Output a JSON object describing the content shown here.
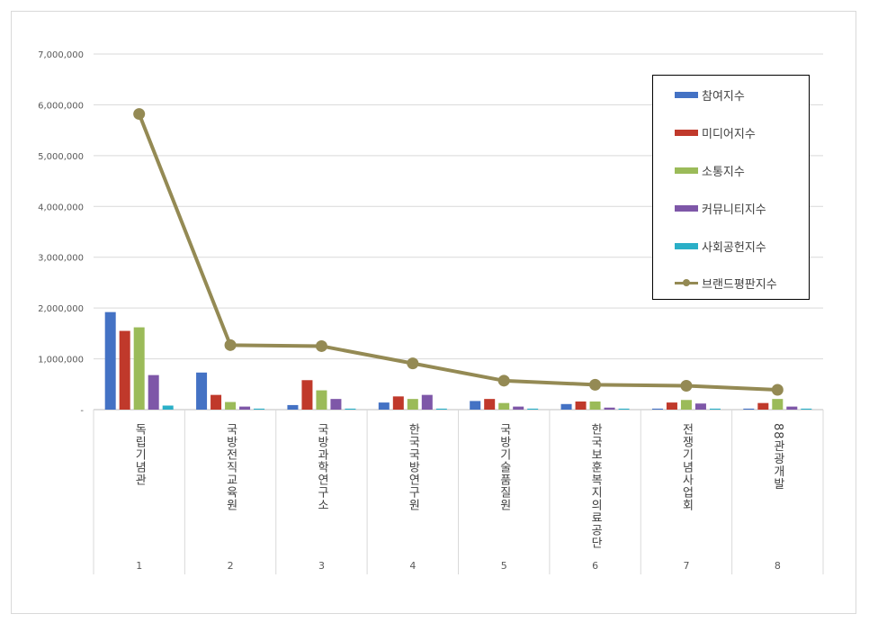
{
  "chart_data": {
    "type": "bar",
    "title": "",
    "xlabel": "",
    "ylabel": "",
    "ylim": [
      0,
      7000000
    ],
    "yticks": [
      0,
      1000000,
      2000000,
      3000000,
      4000000,
      5000000,
      6000000,
      7000000
    ],
    "ytick_labels": [
      "-",
      "1,000,000",
      "2,000,000",
      "3,000,000",
      "4,000,000",
      "5,000,000",
      "6,000,000",
      "7,000,000"
    ],
    "grid": true,
    "legend_position": "top-right",
    "categories": [
      "1",
      "2",
      "3",
      "4",
      "5",
      "6",
      "7",
      "8"
    ],
    "category_labels": [
      "독립기념관",
      "국방전직교육원",
      "국방과학연구소",
      "한국국방연구원",
      "국방기술품질원",
      "한국보훈복지의료공단",
      "전쟁기념사업회",
      "88관광개발"
    ],
    "series": [
      {
        "name": "참여지수",
        "kind": "bar",
        "color": "#4472C4",
        "values": [
          1920000,
          730000,
          90000,
          140000,
          170000,
          110000,
          20000,
          20000
        ]
      },
      {
        "name": "미디어지수",
        "kind": "bar",
        "color": "#C0392B",
        "values": [
          1550000,
          290000,
          580000,
          260000,
          210000,
          160000,
          140000,
          130000
        ]
      },
      {
        "name": "소통지수",
        "kind": "bar",
        "color": "#9BBB59",
        "values": [
          1620000,
          150000,
          380000,
          210000,
          130000,
          160000,
          190000,
          210000
        ]
      },
      {
        "name": "커뮤니티지수",
        "kind": "bar",
        "color": "#7E57A8",
        "values": [
          680000,
          60000,
          210000,
          290000,
          60000,
          40000,
          120000,
          60000
        ]
      },
      {
        "name": "사회공헌지수",
        "kind": "bar",
        "color": "#2AAFC7",
        "values": [
          80000,
          20000,
          20000,
          20000,
          20000,
          20000,
          20000,
          20000
        ]
      },
      {
        "name": "브랜드평판지수",
        "kind": "line",
        "color": "#948A54",
        "values": [
          5820000,
          1270000,
          1250000,
          910000,
          570000,
          490000,
          470000,
          390000
        ]
      }
    ]
  }
}
